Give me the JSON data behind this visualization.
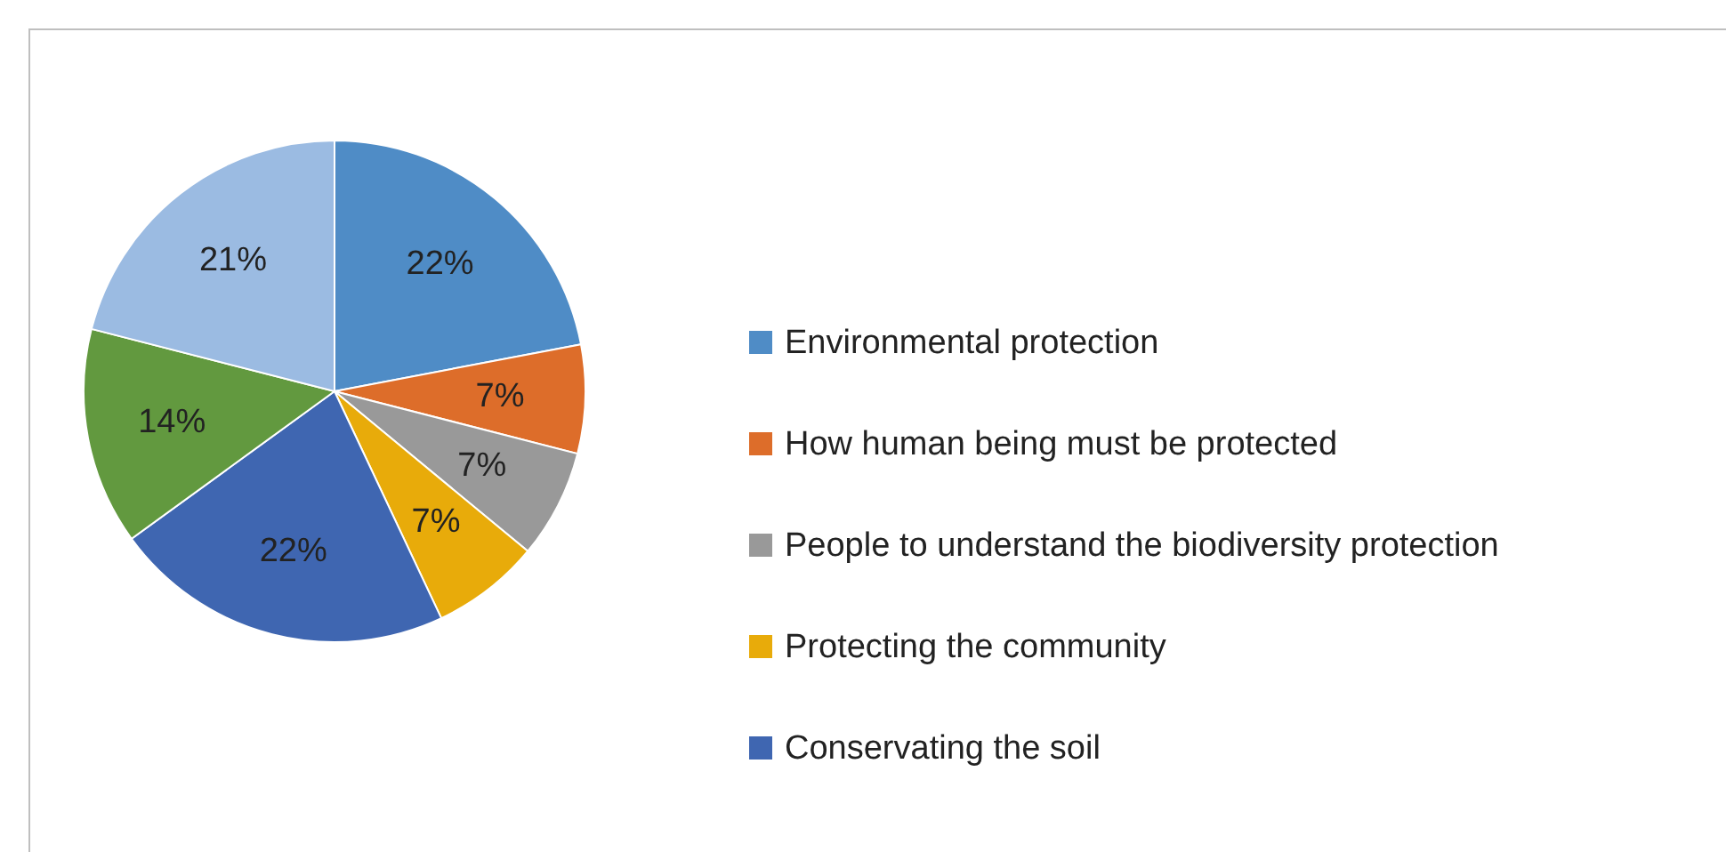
{
  "chart_data": {
    "type": "pie",
    "categories": [
      "Environmental protection",
      "How human being must be protected",
      "People to understand the biodiversity protection",
      "Protecting the community",
      "Conservating the soil",
      null,
      null
    ],
    "values": [
      22,
      7,
      7,
      7,
      22,
      14,
      21
    ],
    "value_labels": [
      "22%",
      "7%",
      "7%",
      "7%",
      "22%",
      "14%",
      "21%"
    ],
    "colors": [
      "#4f8cc6",
      "#dd6d2a",
      "#999999",
      "#e8ab0a",
      "#3f66b1",
      "#62993f",
      "#9bbbe2"
    ],
    "legend": "right"
  }
}
